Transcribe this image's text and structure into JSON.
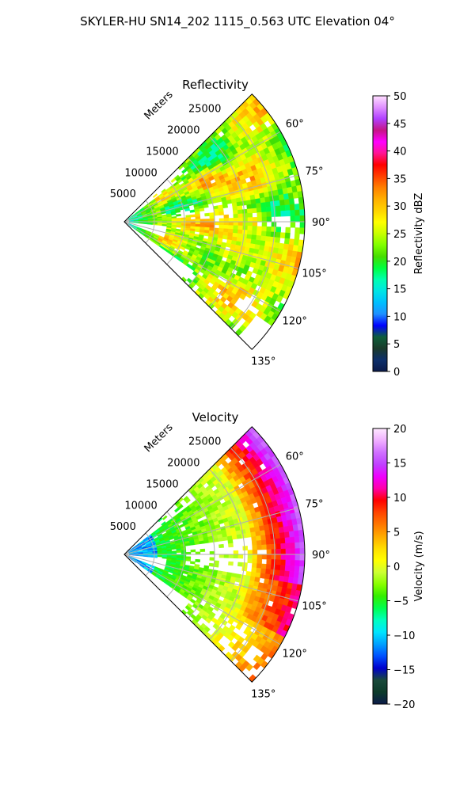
{
  "suptitle": "SKYLER-HU  SN14_202  1115_0.563 UTC Elevation 04°",
  "chart_data": [
    {
      "type": "heatmap",
      "projection": "polar-sector",
      "title": "Reflectivity",
      "radial_label": "Meters",
      "radial_ticks": [
        5000,
        10000,
        15000,
        20000,
        25000
      ],
      "radial_tick_labels": [
        "5000",
        "10000",
        "15000",
        "20000",
        "25000"
      ],
      "rlim": [
        0,
        30000
      ],
      "angle_ticks": [
        60,
        75,
        90,
        105,
        120,
        135
      ],
      "angle_tick_labels": [
        "60°",
        "75°",
        "90°",
        "105°",
        "120°",
        "135°"
      ],
      "theta_range_deg": [
        45,
        135
      ],
      "grid": true,
      "colorbar": {
        "label": "Reflectivity dBZ",
        "range": [
          0,
          50
        ],
        "ticks": [
          0,
          5,
          10,
          15,
          20,
          25,
          30,
          35,
          40,
          45,
          50
        ],
        "tick_labels": [
          "0",
          "5",
          "10",
          "15",
          "20",
          "25",
          "30",
          "35",
          "40",
          "45",
          "50"
        ],
        "colormap": "NWSRef",
        "colors": [
          "#0b1a4a",
          "#0d2f6b",
          "#1a3a2a",
          "#0d5e3a",
          "#0000ff",
          "#1e90ff",
          "#00bfff",
          "#00e5e5",
          "#00ffb0",
          "#00ff40",
          "#44dd00",
          "#7fff00",
          "#c8ff00",
          "#ffff00",
          "#ffd400",
          "#ffb000",
          "#ff8000",
          "#ff4000",
          "#ff0000",
          "#ff1493",
          "#ff00ff",
          "#c71585",
          "#b040ff",
          "#e090ff",
          "#ffe0ff"
        ]
      },
      "summary": {
        "dominant_range_dbz": [
          20,
          35
        ],
        "max_dbz_approx": 38,
        "near_range_min_dbz_approx": 12
      }
    },
    {
      "type": "heatmap",
      "projection": "polar-sector",
      "title": "Velocity",
      "radial_label": "Meters",
      "radial_ticks": [
        5000,
        10000,
        15000,
        20000,
        25000
      ],
      "radial_tick_labels": [
        "5000",
        "10000",
        "15000",
        "20000",
        "25000"
      ],
      "rlim": [
        0,
        30000
      ],
      "angle_ticks": [
        60,
        75,
        90,
        105,
        120,
        135
      ],
      "angle_tick_labels": [
        "60°",
        "75°",
        "90°",
        "105°",
        "120°",
        "135°"
      ],
      "theta_range_deg": [
        45,
        135
      ],
      "grid": true,
      "colorbar": {
        "label": "Velocity (m/s)",
        "range": [
          -20,
          20
        ],
        "ticks": [
          -20,
          -15,
          -10,
          -5,
          0,
          5,
          10,
          15,
          20
        ],
        "tick_labels": [
          "−20",
          "−15",
          "−10",
          "−5",
          "0",
          "5",
          "10",
          "15",
          "20"
        ],
        "colormap": "NWSVel",
        "colors": [
          "#0b1a4a",
          "#0d3b2a",
          "#1a4a3a",
          "#0000cd",
          "#0050ff",
          "#00a0ff",
          "#00e5ff",
          "#00ffc0",
          "#00ff50",
          "#33ee00",
          "#88ff00",
          "#ccff33",
          "#ffff00",
          "#ffdd00",
          "#ffaa00",
          "#ff7700",
          "#ff4400",
          "#ff0000",
          "#ff00aa",
          "#ee00ff",
          "#c040ff",
          "#d070ff",
          "#f0b0ff",
          "#ffe8ff"
        ]
      },
      "summary": {
        "near_range_ms_approx": -12,
        "mid_range_ms_approx": -3,
        "far_range_ms_approx": 15
      }
    }
  ]
}
